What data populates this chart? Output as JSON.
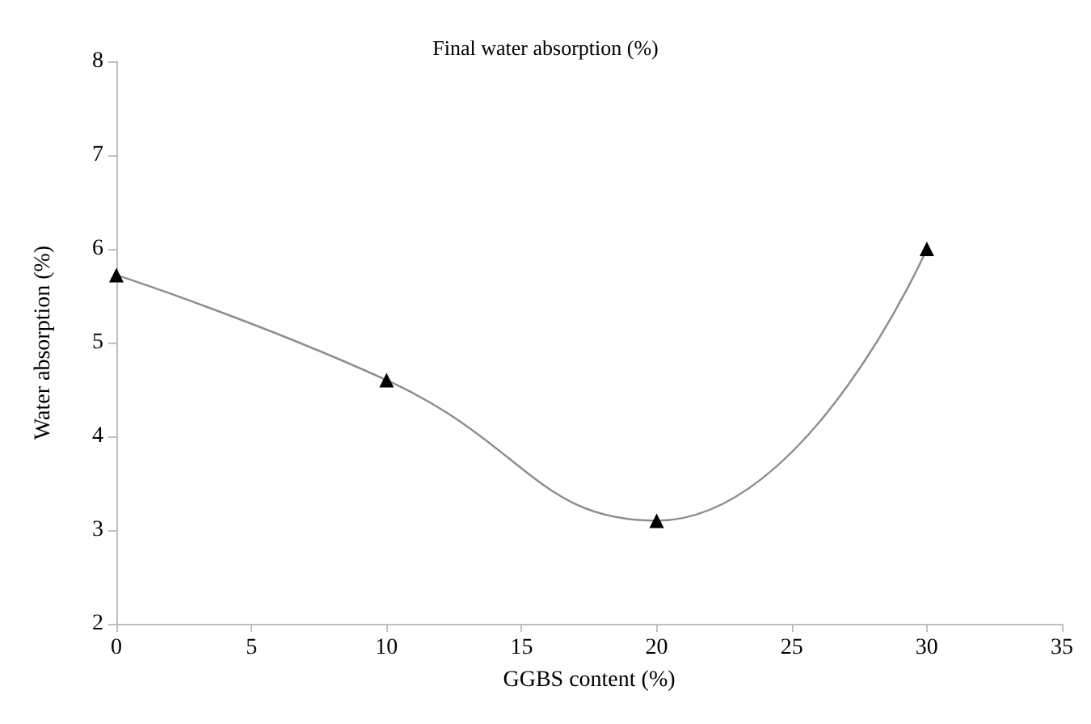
{
  "chart_data": {
    "type": "line",
    "title": "Final water absorption (%)",
    "xlabel": "GGBS content (%)",
    "ylabel": "Water absorption (%)",
    "x": [
      0,
      10,
      20,
      30
    ],
    "series": [
      {
        "color": "#000000",
        "values": [
          5.72,
          4.6,
          3.1,
          6.0
        ]
      }
    ],
    "xlim": [
      0,
      35
    ],
    "xticks": [
      0,
      5,
      10,
      15,
      20,
      25,
      30,
      35
    ],
    "ylim": [
      2,
      8
    ],
    "yticks": [
      2,
      3,
      4,
      5,
      6,
      7,
      8
    ],
    "grid": false,
    "marker": "triangle",
    "line_style": "solid"
  }
}
